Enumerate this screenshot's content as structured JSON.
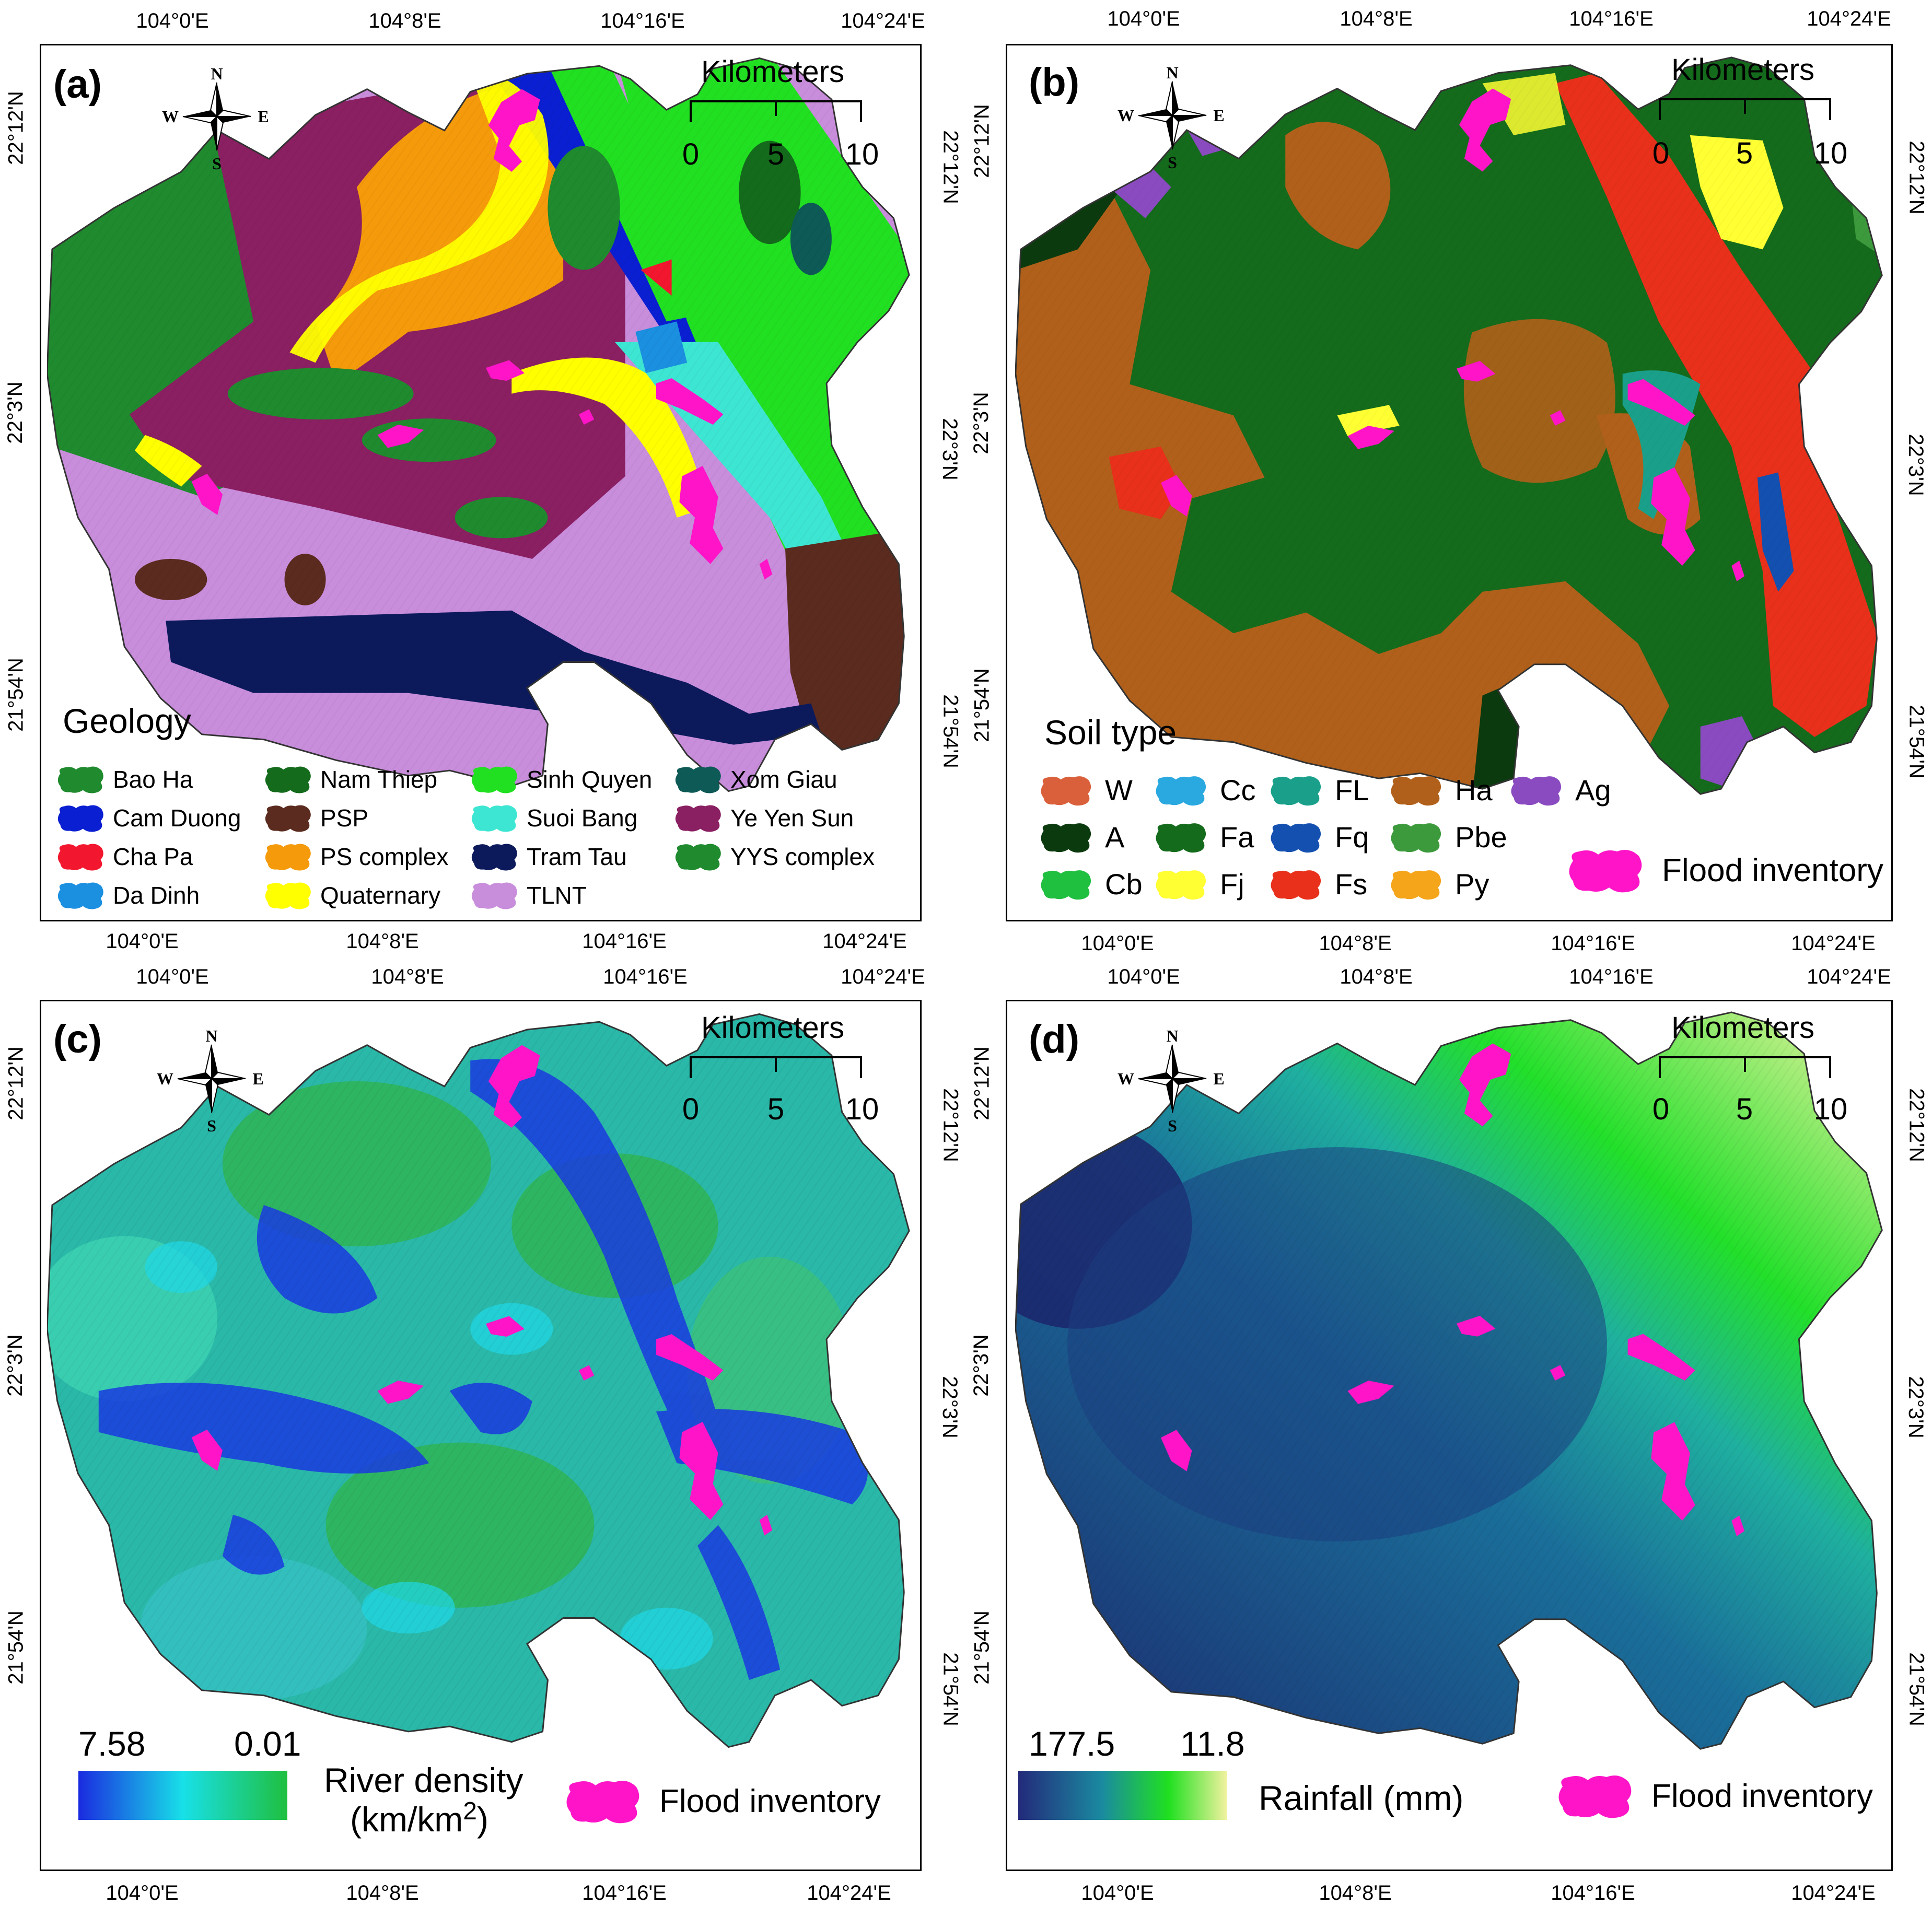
{
  "panels": [
    {
      "label": "(a)",
      "top_ticks": [
        "104°0'E",
        "104°8'E",
        "104°16'E",
        "104°24'E"
      ],
      "bottom_ticks": [
        "104°0'E",
        "104°8'E",
        "104°16'E",
        "104°24'E"
      ],
      "left_ticks": [
        "22°12'N",
        "22°3'N",
        "21°54'N"
      ],
      "right_ticks": [
        "22°12'N",
        "22°3'N",
        "21°54'N"
      ],
      "legend_title": "Geology",
      "legend_items": [
        {
          "label": "Bao Ha",
          "color": "#1f8a2e"
        },
        {
          "label": "Cam Duong",
          "color": "#0a1fd1"
        },
        {
          "label": "Cha Pa",
          "color": "#f2172f"
        },
        {
          "label": "Da Dinh",
          "color": "#1b8fe0"
        },
        {
          "label": "Nam Thiep",
          "color": "#146b1c"
        },
        {
          "label": "PSP",
          "color": "#5a2b1e"
        },
        {
          "label": "PS complex",
          "color": "#f59a0a"
        },
        {
          "label": "Quaternary",
          "color": "#ffff00"
        },
        {
          "label": "Sinh Quyen",
          "color": "#21e021"
        },
        {
          "label": "Suoi Bang",
          "color": "#3de6d2"
        },
        {
          "label": "Tram Tau",
          "color": "#0c1a5c"
        },
        {
          "label": "TLNT",
          "color": "#c88ddb"
        },
        {
          "label": "Xom Giau",
          "color": "#0d5a56"
        },
        {
          "label": "Ye Yen Sun",
          "color": "#8a1f62"
        },
        {
          "label": "YYS complex",
          "color": "#1f8a2e"
        }
      ]
    },
    {
      "label": "(b)",
      "top_ticks": [
        "104°0'E",
        "104°8'E",
        "104°16'E",
        "104°24'E"
      ],
      "bottom_ticks": [
        "104°0'E",
        "104°8'E",
        "104°16'E",
        "104°24'E"
      ],
      "left_ticks": [
        "22°12'N",
        "22°3'N",
        "21°54'N"
      ],
      "right_ticks": [
        "22°12'N",
        "22°3'N",
        "21°54'N"
      ],
      "legend_title": "Soil type",
      "legend_items": [
        {
          "label": "W",
          "color": "#d9603a"
        },
        {
          "label": "A",
          "color": "#0c3a0f"
        },
        {
          "label": "Cb",
          "color": "#1fbf3f"
        },
        {
          "label": "Cc",
          "color": "#2aa8e0"
        },
        {
          "label": "Fa",
          "color": "#146b1c"
        },
        {
          "label": "Fj",
          "color": "#ffff33"
        },
        {
          "label": "FL",
          "color": "#1aa08a"
        },
        {
          "label": "Fq",
          "color": "#1450b0"
        },
        {
          "label": "Fs",
          "color": "#e8301a"
        },
        {
          "label": "Ha",
          "color": "#b0601a"
        },
        {
          "label": "Pbe",
          "color": "#3c9a3c"
        },
        {
          "label": "Py",
          "color": "#f5a51a"
        },
        {
          "label": "Ag",
          "color": "#8a4bc0"
        }
      ],
      "flood_label": "Flood inventory"
    },
    {
      "label": "(c)",
      "top_ticks": [
        "104°0'E",
        "104°8'E",
        "104°16'E",
        "104°24'E"
      ],
      "bottom_ticks": [
        "104°0'E",
        "104°8'E",
        "104°16'E",
        "104°24'E"
      ],
      "left_ticks": [
        "22°12'N",
        "22°3'N",
        "21°54'N"
      ],
      "right_ticks": [
        "22°12'N",
        "22°3'N",
        "21°54'N"
      ],
      "ramp_high": "7.58",
      "ramp_low": "0.01",
      "ramp_title_line1": "River density",
      "ramp_title_line2": "(km/km",
      "ramp_title_sup": "2",
      "ramp_title_close": ")",
      "ramp_colors": [
        "#1a2be0",
        "#18e0e8",
        "#1fbf3f"
      ],
      "flood_label": "Flood inventory"
    },
    {
      "label": "(d)",
      "top_ticks": [
        "104°0'E",
        "104°8'E",
        "104°16'E",
        "104°24'E"
      ],
      "bottom_ticks": [
        "104°0'E",
        "104°8'E",
        "104°16'E",
        "104°24'E"
      ],
      "left_ticks": [
        "22°12'N",
        "22°3'N",
        "21°54'N"
      ],
      "right_ticks": [
        "22°12'N",
        "22°3'N",
        "21°54'N"
      ],
      "ramp_high": "177.5",
      "ramp_low": "11.8",
      "ramp_title": "Rainfall (mm)",
      "ramp_colors": [
        "#232a7a",
        "#1a8aa0",
        "#20e020",
        "#f2f2a0"
      ],
      "flood_label": "Flood inventory"
    }
  ],
  "scale_bar": {
    "title": "Kilometers",
    "labels": [
      "0",
      "5",
      "10"
    ]
  },
  "compass": {
    "n": "N",
    "s": "S",
    "e": "E",
    "w": "W"
  },
  "flood_color": "#ff14c8"
}
